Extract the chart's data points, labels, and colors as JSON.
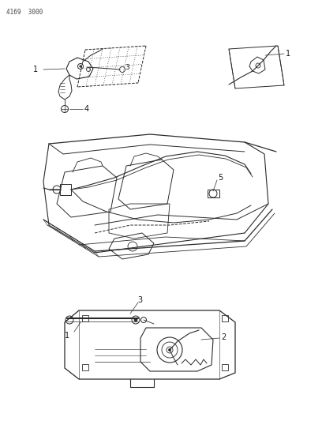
{
  "page_id": "4169  3000",
  "background": "#ffffff",
  "line_color": "#2a2a2a",
  "label_color": "#1a1a1a",
  "fig_width": 4.08,
  "fig_height": 5.33,
  "dpi": 100
}
